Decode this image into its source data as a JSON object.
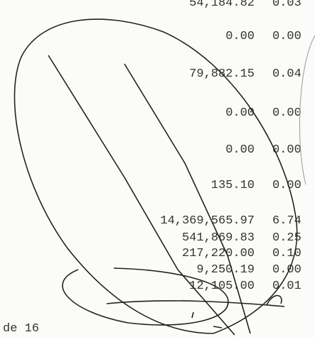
{
  "rows": [
    {
      "amount": "54,184.82",
      "percent": "0.03"
    },
    {
      "amount": "0.00",
      "percent": "0.00"
    },
    {
      "amount": "79,882.15",
      "percent": "0.04"
    },
    {
      "amount": "0.00",
      "percent": "0.00"
    },
    {
      "amount": "0.00",
      "percent": "0.00"
    },
    {
      "amount": "135.10",
      "percent": "0.00"
    },
    {
      "amount": "14,369,565.97",
      "percent": "6.74"
    },
    {
      "amount": "541,869.83",
      "percent": "0.25"
    },
    {
      "amount": "217,220.00",
      "percent": "0.10"
    },
    {
      "amount": "9,250.19",
      "percent": "0.00"
    },
    {
      "amount": "12,105.00",
      "percent": "0.01"
    }
  ],
  "footer": "de 16"
}
